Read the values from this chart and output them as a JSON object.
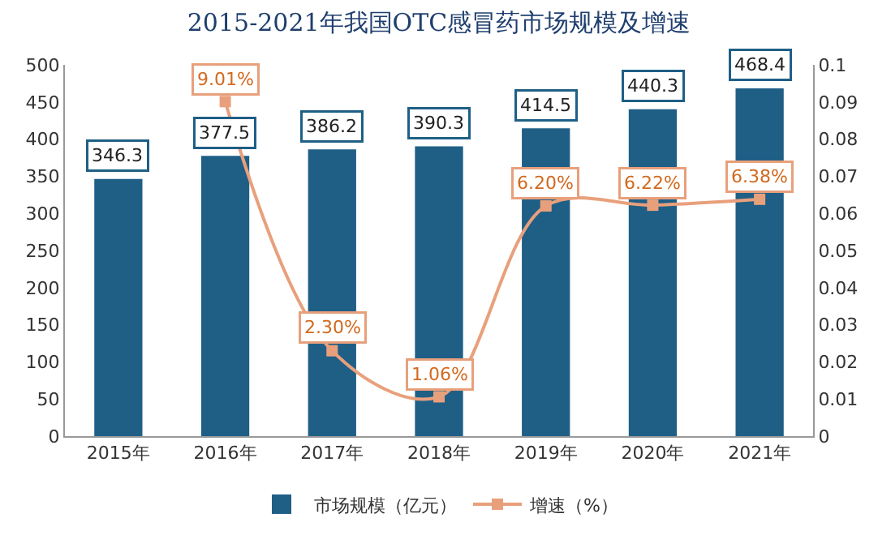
{
  "chart_data": {
    "type": "bar",
    "title": "2015-2021年我国OTC感冒药市场规模及增速",
    "categories": [
      "2015年",
      "2016年",
      "2017年",
      "2018年",
      "2019年",
      "2020年",
      "2021年"
    ],
    "series": [
      {
        "name": "市场规模（亿元）",
        "color": "#1f5f86",
        "values": [
          346.3,
          377.5,
          386.2,
          390.3,
          414.5,
          440.3,
          468.4
        ],
        "value_labels": [
          "346.3",
          "377.5",
          "386.2",
          "390.3",
          "414.5",
          "440.3",
          "468.4"
        ]
      },
      {
        "name": "增速（%）",
        "type": "line",
        "axis": "y2",
        "color": "#e8a07c",
        "marker": "square",
        "values": [
          null,
          0.0901,
          0.023,
          0.0106,
          0.062,
          0.0622,
          0.0638
        ],
        "value_labels": [
          null,
          "9.01%",
          "2.30%",
          "1.06%",
          "6.20%",
          "6.22%",
          "6.38%"
        ]
      }
    ],
    "ylim": [
      0,
      500
    ],
    "yticks": [
      0,
      50,
      100,
      150,
      200,
      250,
      300,
      350,
      400,
      450,
      500
    ],
    "y2lim": [
      0,
      0.1
    ],
    "y2ticks": [
      0,
      0.01,
      0.02,
      0.03,
      0.04,
      0.05,
      0.06,
      0.07,
      0.08,
      0.09,
      0.1
    ],
    "legend": "bottom"
  }
}
